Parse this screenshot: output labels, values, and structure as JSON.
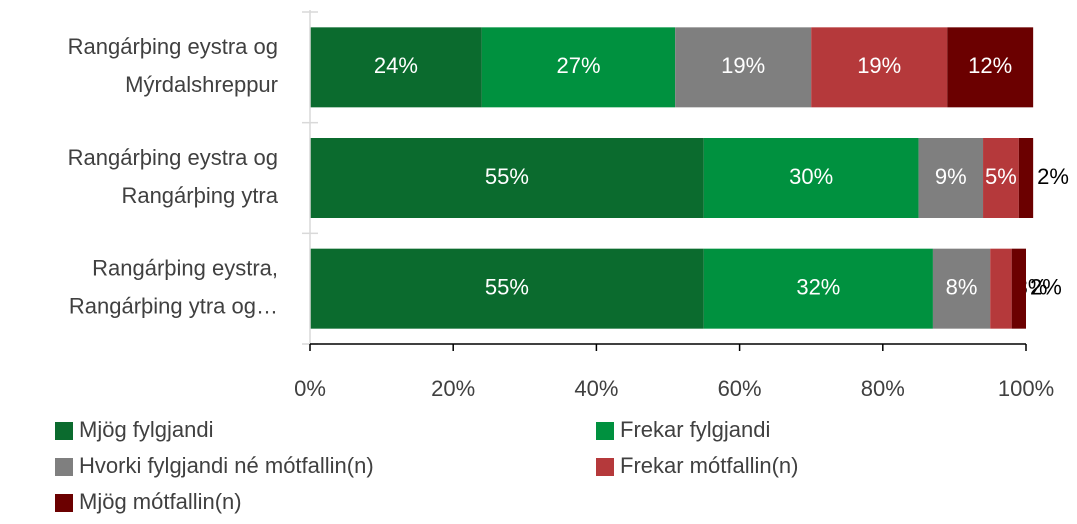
{
  "chart_data": {
    "type": "stacked-bar-horizontal",
    "categories": [
      [
        "Rangárþing eystra og",
        "Mýrdalshreppur"
      ],
      [
        "Rangárþing eystra og",
        "Rangárþing ytra"
      ],
      [
        "Rangárþing eystra,",
        "Rangárþing ytra og…"
      ]
    ],
    "series": [
      {
        "name": "Mjög fylgjandi",
        "color": "#0b6b2e",
        "values": [
          24,
          55,
          55
        ],
        "value_labels": [
          "24%",
          "55%",
          "55%"
        ]
      },
      {
        "name": "Frekar fylgjandi",
        "color": "#00913f",
        "values": [
          27,
          30,
          32
        ],
        "value_labels": [
          "27%",
          "30%",
          "32%"
        ]
      },
      {
        "name": "Hvorki fylgjandi né mótfallin(n)",
        "color": "#7f7f7f",
        "values": [
          19,
          9,
          8
        ],
        "value_labels": [
          "19%",
          "9%",
          "8%"
        ]
      },
      {
        "name": "Frekar mótfallin(n)",
        "color": "#b5393b",
        "values": [
          19,
          5,
          3
        ],
        "value_labels": [
          "19%",
          "5%",
          "3%"
        ]
      },
      {
        "name": "Mjög mótfallin(n)",
        "color": "#6b0000",
        "values": [
          12,
          2,
          2
        ],
        "value_labels": [
          "12%",
          "2%",
          "2%"
        ]
      }
    ],
    "xlim": [
      0,
      100
    ],
    "xticks": [
      {
        "value": 0,
        "label": "0%"
      },
      {
        "value": 20,
        "label": "20%"
      },
      {
        "value": 40,
        "label": "40%"
      },
      {
        "value": 60,
        "label": "60%"
      },
      {
        "value": 80,
        "label": "80%"
      },
      {
        "value": 100,
        "label": "100%"
      }
    ],
    "legend": "bottom"
  }
}
